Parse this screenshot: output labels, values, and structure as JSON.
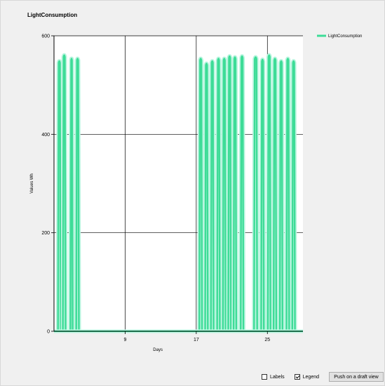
{
  "window": {
    "title": "LightConsumption"
  },
  "controls": {
    "labels_label": "Labels",
    "labels_checked": false,
    "legend_label": "Legend",
    "legend_checked": true,
    "push_button_label": "Push on a draft view"
  },
  "colors": {
    "series": "#3ddc97",
    "glow": "#b9f5df",
    "grid": "#000000",
    "plot_bg": "#ffffff"
  },
  "chart_data": {
    "type": "line",
    "title": "LightConsumption",
    "xlabel": "Days",
    "ylabel": "Values Wh",
    "xlim": [
      1,
      29
    ],
    "ylim": [
      0,
      600
    ],
    "x_ticks": [
      9,
      17,
      25
    ],
    "y_ticks": [
      0,
      200,
      400,
      600
    ],
    "grid": true,
    "legend_position": "top-right",
    "series": [
      {
        "name": "LightConsumption",
        "pulses": [
          {
            "start": 1.45,
            "end": 1.75,
            "peak": 545
          },
          {
            "start": 2.0,
            "end": 2.3,
            "peak": 557
          },
          {
            "start": 2.85,
            "end": 3.1,
            "peak": 550
          },
          {
            "start": 3.5,
            "end": 3.8,
            "peak": 550
          },
          {
            "start": 17.35,
            "end": 17.65,
            "peak": 550
          },
          {
            "start": 18.0,
            "end": 18.3,
            "peak": 540
          },
          {
            "start": 18.65,
            "end": 18.95,
            "peak": 545
          },
          {
            "start": 19.35,
            "end": 19.65,
            "peak": 550
          },
          {
            "start": 20.0,
            "end": 20.3,
            "peak": 550
          },
          {
            "start": 20.6,
            "end": 20.9,
            "peak": 555
          },
          {
            "start": 21.2,
            "end": 21.5,
            "peak": 553
          },
          {
            "start": 22.0,
            "end": 22.3,
            "peak": 555
          },
          {
            "start": 23.5,
            "end": 23.85,
            "peak": 553
          },
          {
            "start": 24.3,
            "end": 24.6,
            "peak": 548
          },
          {
            "start": 25.05,
            "end": 25.35,
            "peak": 557
          },
          {
            "start": 25.7,
            "end": 26.0,
            "peak": 550
          },
          {
            "start": 26.4,
            "end": 26.7,
            "peak": 545
          },
          {
            "start": 27.15,
            "end": 27.45,
            "peak": 550
          },
          {
            "start": 27.8,
            "end": 28.1,
            "peak": 545
          }
        ]
      }
    ]
  }
}
